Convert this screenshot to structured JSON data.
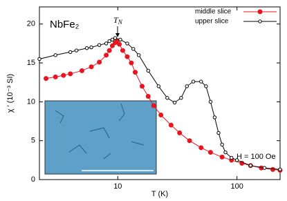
{
  "chart_data": {
    "type": "line",
    "title": "NbFe₂",
    "transition_label": [
      "T",
      "N"
    ],
    "annotation": "H = 100 Oe",
    "x_label": "T (K)",
    "y_label": "χ ′ (10⁻³ SI)",
    "x_scale": "log",
    "xlim": [
      2.2,
      230
    ],
    "ylim": [
      0,
      22.2
    ],
    "xticks": [
      10,
      100
    ],
    "yticks": [
      0,
      5,
      10,
      15,
      20
    ],
    "grid": false,
    "legend": "top-right",
    "series": [
      {
        "name": "middle slice",
        "color": "#e8141e",
        "marker": "filled",
        "x": [
          2.5,
          3,
          3.5,
          4,
          5,
          6,
          7,
          8,
          8.5,
          9,
          9.5,
          9.8,
          10.3,
          11,
          12,
          13,
          14,
          16,
          18,
          20,
          23,
          28,
          33,
          40,
          50,
          60,
          75,
          90,
          110,
          130,
          160,
          200,
          230
        ],
        "values": [
          13,
          13.2,
          13.4,
          13.6,
          14,
          14.5,
          15.1,
          16,
          16.6,
          17.2,
          17.6,
          17.8,
          17.4,
          16.6,
          15.8,
          15,
          13.8,
          12,
          10.7,
          9.5,
          8.3,
          7,
          6,
          5,
          4.1,
          3.5,
          2.9,
          2.5,
          2.1,
          1.8,
          1.5,
          1.3,
          1.2
        ]
      },
      {
        "name": "upper slice",
        "color": "#000000",
        "marker": "open",
        "x": [
          2.2,
          3,
          4,
          4.5,
          5.5,
          6,
          7,
          8,
          8.5,
          9,
          9.5,
          10.5,
          12,
          13.5,
          15,
          18,
          22,
          26,
          30,
          34,
          38,
          43,
          50,
          55,
          60,
          65,
          70,
          75,
          80,
          90,
          100,
          130,
          170,
          230
        ],
        "values": [
          15.5,
          16,
          16.4,
          16.6,
          16.9,
          17,
          17.3,
          17.5,
          17.8,
          18,
          18.2,
          18,
          17.5,
          16.8,
          16,
          14,
          12,
          10.5,
          9.9,
          10.5,
          12,
          12.6,
          12.6,
          12,
          10,
          8,
          6,
          4.5,
          3.5,
          2.8,
          2.5,
          1.8,
          1.5,
          1.3
        ]
      }
    ]
  }
}
